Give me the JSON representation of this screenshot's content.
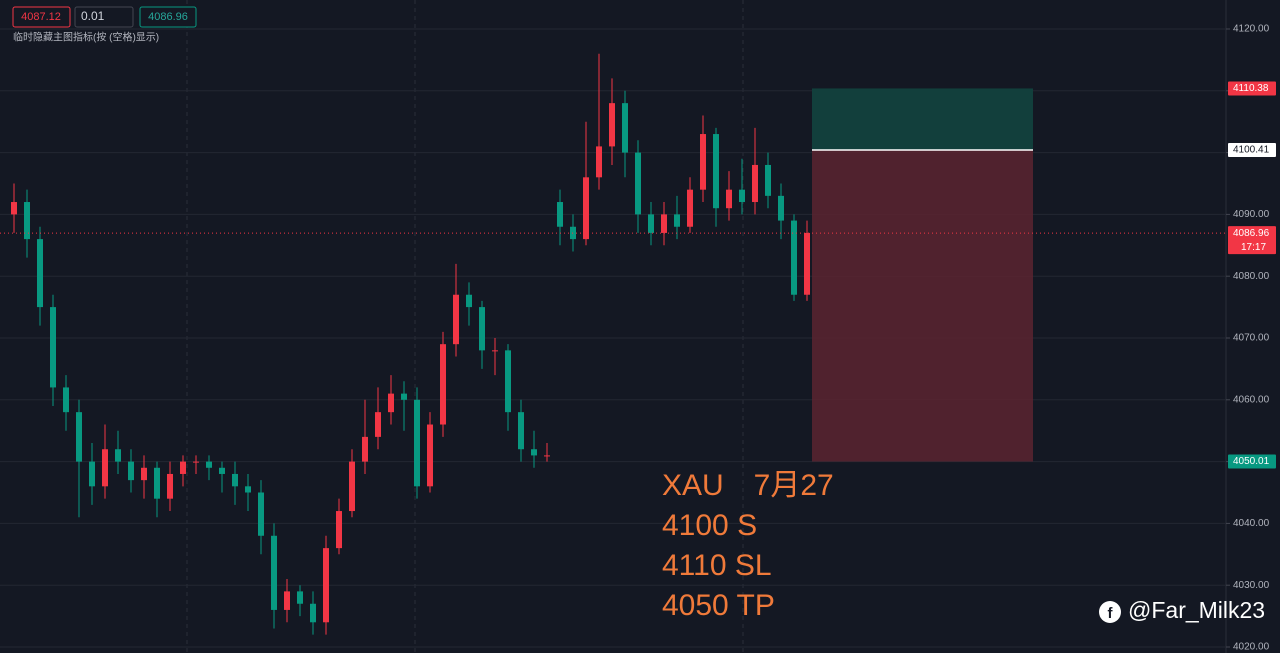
{
  "toolbar": {
    "sell": 4087.12,
    "qty": 0.01,
    "buy": 4086.96,
    "hint": "临时隐藏主图指标(按 (空格)显示)"
  },
  "chart_data": {
    "type": "candlestick",
    "categories": [
      null,
      null,
      null,
      null,
      null,
      null,
      null,
      null,
      null,
      null,
      null,
      null,
      null,
      null,
      null,
      null,
      null,
      null,
      null,
      null,
      null,
      null,
      null,
      null,
      null,
      null,
      null,
      null,
      null,
      null,
      null,
      null,
      null,
      null,
      null,
      null,
      null,
      null,
      null,
      null,
      null,
      null,
      null,
      null,
      null,
      null,
      null,
      null,
      null,
      null,
      null,
      null,
      null,
      null,
      null,
      null,
      null,
      null,
      null,
      null,
      null,
      null
    ],
    "open": [
      4090,
      4092,
      4086,
      4075,
      4062,
      4058,
      4050,
      4046,
      4052,
      4050,
      4047,
      4049,
      4044,
      4048,
      4050,
      4050,
      4049,
      4048,
      4046,
      4045,
      4038,
      4026,
      4029,
      4027,
      4024,
      4036,
      4042,
      4050,
      4054,
      4058,
      4061,
      4060,
      4046,
      4056,
      4069,
      4077,
      4075,
      4068,
      4068,
      4058,
      4052,
      4051,
      4092,
      4088,
      4086,
      4096,
      4101,
      4108,
      4100,
      4090,
      4087,
      4090,
      4088,
      4094,
      4103,
      4091,
      4094,
      4092,
      4098,
      4093,
      4089,
      4077
    ],
    "high": [
      4095,
      4094,
      4088,
      4077,
      4064,
      4060,
      4053,
      4056,
      4055,
      4052,
      4051,
      4050,
      4050,
      4051,
      4051,
      4051,
      4050,
      4050,
      4048,
      4047,
      4040,
      4031,
      4030,
      4029,
      4038,
      4044,
      4052,
      4060,
      4062,
      4064,
      4063,
      4062,
      4058,
      4071,
      4082,
      4079,
      4076,
      4070,
      4069,
      4060,
      4055,
      4053,
      4094,
      4090,
      4105,
      4116,
      4112,
      4110,
      4102,
      4092,
      4092,
      4093,
      4096,
      4106,
      4104,
      4097,
      4099,
      4104,
      4100,
      4095,
      4090,
      4089
    ],
    "low": [
      4087,
      4083,
      4072,
      4059,
      4055,
      4041,
      4043,
      4044,
      4048,
      4045,
      4044,
      4041,
      4042,
      4046,
      4048,
      4047,
      4045,
      4043,
      4042,
      4035,
      4023,
      4024,
      4025,
      4022,
      4022,
      4035,
      4041,
      4048,
      4052,
      4056,
      4055,
      4044,
      4045,
      4054,
      4067,
      4072,
      4065,
      4064,
      4055,
      4050,
      4049,
      4050,
      4085,
      4084,
      4085,
      4094,
      4098,
      4096,
      4087,
      4085,
      4085,
      4086,
      4087,
      4092,
      4088,
      4089,
      4090,
      4090,
      4091,
      4086,
      4076,
      4076
    ],
    "close": [
      4092,
      4086,
      4075,
      4062,
      4058,
      4050,
      4046,
      4052,
      4050,
      4047,
      4049,
      4044,
      4048,
      4050,
      4050,
      4049,
      4048,
      4046,
      4045,
      4038,
      4026,
      4029,
      4027,
      4024,
      4036,
      4042,
      4050,
      4054,
      4058,
      4061,
      4060,
      4046,
      4056,
      4069,
      4077,
      4075,
      4068,
      4068,
      4058,
      4052,
      4051,
      4051,
      4088,
      4086,
      4096,
      4101,
      4108,
      4100,
      4090,
      4087,
      4090,
      4088,
      4094,
      4103,
      4091,
      4094,
      4092,
      4098,
      4093,
      4089,
      4077,
      4087
    ],
    "up_color": "#f23645",
    "down_color": "#089981",
    "ylim": [
      4019.03,
      4124.69
    ],
    "yticks": [
      {
        "value": 4020,
        "label": "4020.00"
      },
      {
        "value": 4030,
        "label": "4030.00"
      },
      {
        "value": 4040,
        "label": "4040.00"
      },
      {
        "value": 4050,
        "label": "4050.00"
      },
      {
        "value": 4060,
        "label": "4060.00"
      },
      {
        "value": 4070,
        "label": "4070.00"
      },
      {
        "value": 4080,
        "label": "4080.00"
      },
      {
        "value": 4090,
        "label": "4090.00"
      },
      {
        "value": 4100,
        "label": "4100.00"
      },
      {
        "value": 4110,
        "label": "4110.00"
      },
      {
        "value": 4120,
        "label": "4120.00"
      }
    ],
    "grid": true,
    "current_price": 4086.96,
    "countdown": "17:17",
    "position": {
      "entry": 4100.41,
      "stop": 4110.38,
      "target": 4050.01,
      "stop_color": "#123f3c",
      "target_color": "#5a2530"
    },
    "annotations": [
      "XAU　7月27",
      "4100 S",
      "4110 SL",
      "4050 TP"
    ],
    "watermark": "@Far_Milk23"
  }
}
